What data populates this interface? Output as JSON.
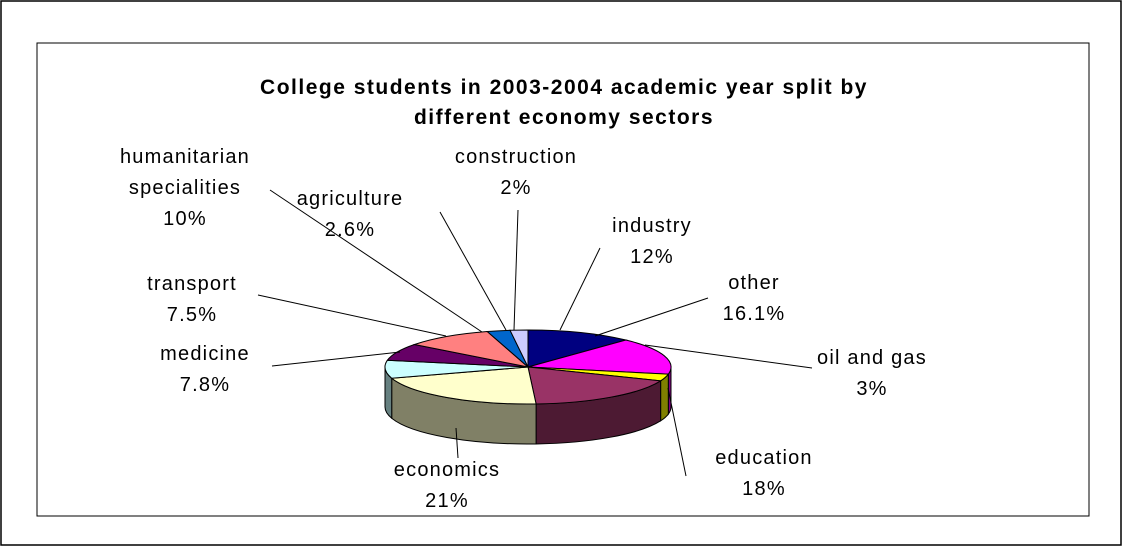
{
  "chart_data": {
    "type": "pie",
    "title_lines": [
      "College students in 2003-2004 academic year split by",
      "different economy sectors"
    ],
    "slices": [
      {
        "name": "industry",
        "value_label": "12%",
        "value": 12,
        "color": "#000080"
      },
      {
        "name": "other",
        "value_label": "16.1%",
        "value": 16.1,
        "color": "#FF00FF"
      },
      {
        "name": "oil and gas",
        "value_label": "3%",
        "value": 3,
        "color": "#FFFF00"
      },
      {
        "name": "education",
        "value_label": "18%",
        "value": 18,
        "color": "#993366"
      },
      {
        "name": "economics",
        "value_label": "21%",
        "value": 21,
        "color": "#FFFFCC"
      },
      {
        "name": "medicine",
        "value_label": "7.8%",
        "value": 7.8,
        "color": "#CCFFFF"
      },
      {
        "name": "transport",
        "value_label": "7.5%",
        "value": 7.5,
        "color": "#660066"
      },
      {
        "name": "humanitarian specialities",
        "value_label": "10%",
        "value": 10,
        "color": "#FF8080"
      },
      {
        "name": "agriculture",
        "value_label": "2.6%",
        "value": 2.6,
        "color": "#0066CC"
      },
      {
        "name": "construction",
        "value_label": "2%",
        "value": 2,
        "color": "#CCCCFF"
      }
    ],
    "legend": "none",
    "style": "3d-pie"
  }
}
